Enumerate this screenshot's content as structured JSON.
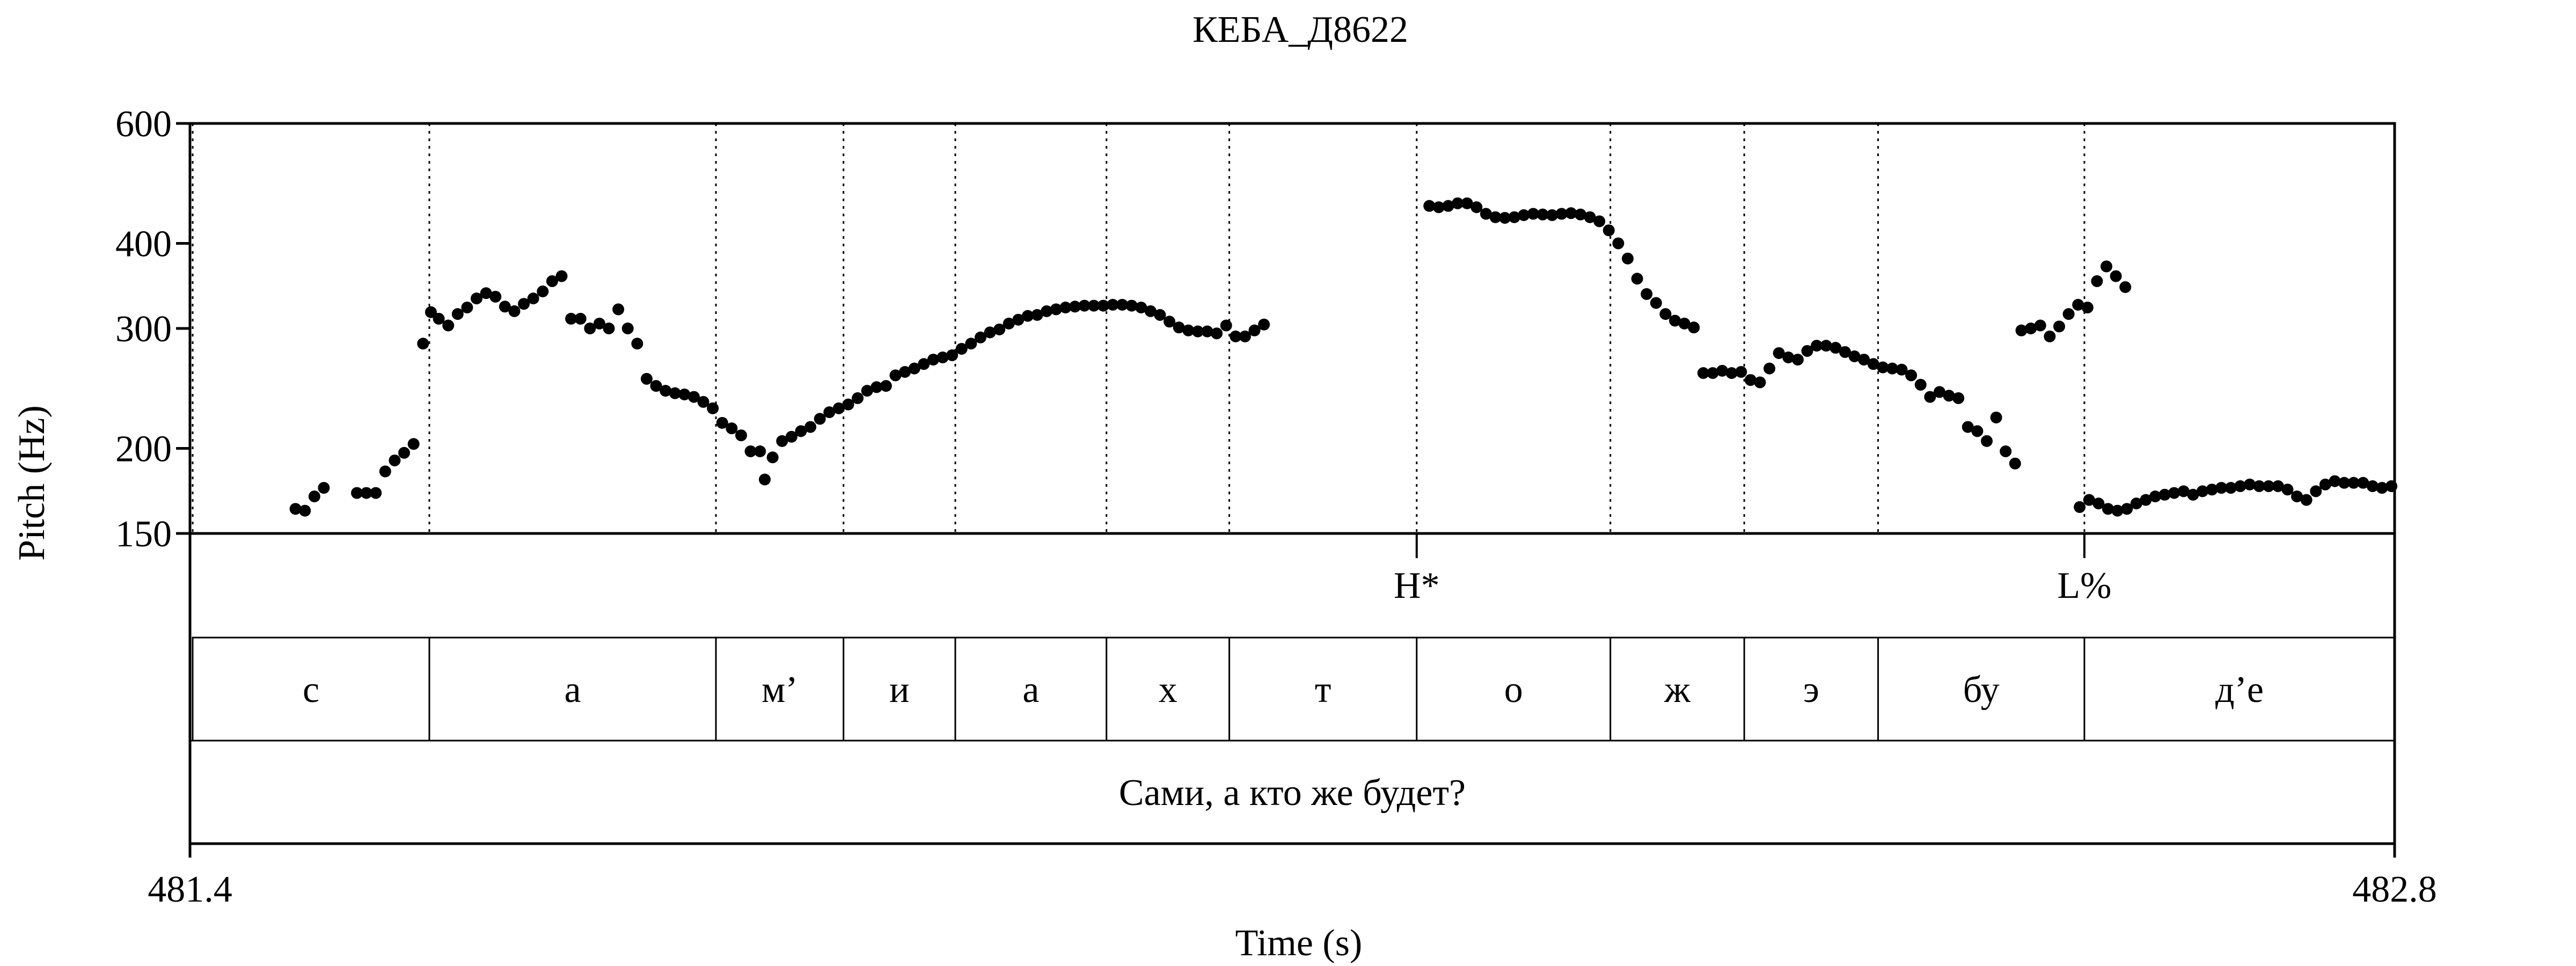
{
  "chart_data": {
    "type": "scatter",
    "title": "КЕБА_Д8622",
    "xlabel": "Time (s)",
    "ylabel": "Pitch (Hz)",
    "xlim": [
      481.4,
      482.8
    ],
    "ylim": [
      150,
      600
    ],
    "y_scale": "log",
    "x_ticks": [
      "481.4",
      "482.8"
    ],
    "y_ticks": [
      {
        "value": 150,
        "label": "150"
      },
      {
        "value": 200,
        "label": "200"
      },
      {
        "value": 300,
        "label": "300"
      },
      {
        "value": 400,
        "label": "400"
      },
      {
        "value": 600,
        "label": "600"
      }
    ],
    "grid": false,
    "segment_boundaries": [
      481.552,
      481.734,
      481.815,
      481.886,
      481.982,
      482.06,
      482.179,
      482.302,
      482.387,
      482.472,
      482.603
    ],
    "tones": [
      {
        "time": 482.179,
        "label": "H*"
      },
      {
        "time": 482.603,
        "label": "L%"
      }
    ],
    "segments": [
      {
        "start": 481.4,
        "end": 481.552,
        "label": "с"
      },
      {
        "start": 481.552,
        "end": 481.734,
        "label": "а"
      },
      {
        "start": 481.734,
        "end": 481.815,
        "label": "м’"
      },
      {
        "start": 481.815,
        "end": 481.886,
        "label": "и"
      },
      {
        "start": 481.886,
        "end": 481.982,
        "label": "а"
      },
      {
        "start": 481.982,
        "end": 482.06,
        "label": "х"
      },
      {
        "start": 482.06,
        "end": 482.179,
        "label": "т"
      },
      {
        "start": 482.179,
        "end": 482.302,
        "label": "о"
      },
      {
        "start": 482.302,
        "end": 482.387,
        "label": "ж"
      },
      {
        "start": 482.387,
        "end": 482.472,
        "label": "э"
      },
      {
        "start": 482.472,
        "end": 482.603,
        "label": "бу"
      },
      {
        "start": 482.603,
        "end": 482.8,
        "label": "д’е"
      }
    ],
    "sentence": "Сами, а кто же будет?",
    "pitch_track": [
      [
        [
          481.467,
          163
        ],
        [
          481.473,
          162
        ],
        [
          481.479,
          170
        ],
        [
          481.485,
          175
        ],
        [
          481.506,
          172
        ],
        [
          481.512,
          172
        ],
        [
          481.518,
          172
        ],
        [
          481.524,
          185
        ],
        [
          481.53,
          192
        ],
        [
          481.536,
          197
        ],
        [
          481.542,
          203
        ],
        [
          481.548,
          285
        ],
        [
          481.553,
          317
        ],
        [
          481.558,
          310
        ],
        [
          481.564,
          303
        ],
        [
          481.57,
          315
        ],
        [
          481.576,
          322
        ],
        [
          481.582,
          332
        ],
        [
          481.588,
          338
        ],
        [
          481.594,
          334
        ],
        [
          481.6,
          323
        ],
        [
          481.606,
          318
        ],
        [
          481.612,
          326
        ],
        [
          481.618,
          332
        ],
        [
          481.624,
          340
        ],
        [
          481.63,
          352
        ],
        [
          481.636,
          358
        ],
        [
          481.642,
          310
        ],
        [
          481.648,
          310
        ],
        [
          481.654,
          300
        ],
        [
          481.66,
          305
        ],
        [
          481.666,
          300
        ],
        [
          481.672,
          320
        ],
        [
          481.678,
          300
        ],
        [
          481.684,
          285
        ],
        [
          481.69,
          253
        ],
        [
          481.696,
          247
        ],
        [
          481.702,
          243
        ],
        [
          481.708,
          241
        ],
        [
          481.714,
          240
        ],
        [
          481.72,
          238
        ],
        [
          481.726,
          234
        ],
        [
          481.732,
          229
        ],
        [
          481.738,
          218
        ],
        [
          481.744,
          214
        ],
        [
          481.75,
          209
        ],
        [
          481.756,
          198
        ],
        [
          481.762,
          198
        ],
        [
          481.765,
          180
        ],
        [
          481.77,
          194
        ],
        [
          481.776,
          205
        ],
        [
          481.782,
          208
        ],
        [
          481.788,
          212
        ],
        [
          481.794,
          215
        ],
        [
          481.8,
          221
        ],
        [
          481.806,
          226
        ],
        [
          481.812,
          229
        ],
        [
          481.818,
          232
        ],
        [
          481.824,
          237
        ],
        [
          481.83,
          243
        ],
        [
          481.836,
          246
        ],
        [
          481.842,
          247
        ],
        [
          481.848,
          256
        ],
        [
          481.854,
          259
        ],
        [
          481.86,
          262
        ],
        [
          481.866,
          266
        ],
        [
          481.872,
          270
        ],
        [
          481.878,
          272
        ],
        [
          481.884,
          274
        ],
        [
          481.89,
          280
        ],
        [
          481.896,
          285
        ],
        [
          481.902,
          291
        ],
        [
          481.908,
          296
        ],
        [
          481.914,
          299
        ],
        [
          481.92,
          305
        ],
        [
          481.926,
          309
        ],
        [
          481.932,
          313
        ],
        [
          481.938,
          314
        ],
        [
          481.944,
          318
        ],
        [
          481.95,
          320
        ],
        [
          481.956,
          322
        ],
        [
          481.962,
          323
        ],
        [
          481.968,
          324
        ],
        [
          481.974,
          324
        ],
        [
          481.98,
          324
        ],
        [
          481.986,
          325
        ],
        [
          481.992,
          325
        ],
        [
          481.998,
          324
        ],
        [
          482.004,
          322
        ],
        [
          482.01,
          318
        ],
        [
          482.016,
          314
        ],
        [
          482.022,
          307
        ],
        [
          482.028,
          301
        ],
        [
          482.034,
          298
        ],
        [
          482.04,
          297
        ],
        [
          482.046,
          297
        ],
        [
          482.052,
          295
        ],
        [
          482.058,
          303
        ],
        [
          482.064,
          292
        ],
        [
          482.07,
          292
        ],
        [
          482.076,
          298
        ],
        [
          482.082,
          304
        ]
      ],
      [
        [
          482.187,
          454
        ],
        [
          482.193,
          452
        ],
        [
          482.199,
          454
        ],
        [
          482.205,
          458
        ],
        [
          482.211,
          458
        ],
        [
          482.217,
          452
        ],
        [
          482.223,
          442
        ],
        [
          482.229,
          437
        ],
        [
          482.235,
          436
        ],
        [
          482.241,
          437
        ],
        [
          482.247,
          440
        ],
        [
          482.253,
          442
        ],
        [
          482.259,
          441
        ],
        [
          482.265,
          440
        ],
        [
          482.271,
          442
        ],
        [
          482.277,
          443
        ],
        [
          482.283,
          441
        ],
        [
          482.289,
          437
        ],
        [
          482.295,
          431
        ],
        [
          482.301,
          418
        ],
        [
          482.307,
          400
        ],
        [
          482.313,
          380
        ],
        [
          482.319,
          355
        ],
        [
          482.325,
          337
        ],
        [
          482.331,
          327
        ],
        [
          482.337,
          315
        ],
        [
          482.343,
          308
        ],
        [
          482.349,
          305
        ],
        [
          482.355,
          301
        ],
        [
          482.361,
          258
        ],
        [
          482.367,
          258
        ],
        [
          482.373,
          260
        ],
        [
          482.379,
          258
        ],
        [
          482.385,
          259
        ],
        [
          482.391,
          252
        ],
        [
          482.397,
          250
        ],
        [
          482.403,
          262
        ],
        [
          482.409,
          276
        ],
        [
          482.415,
          272
        ],
        [
          482.421,
          270
        ],
        [
          482.427,
          278
        ],
        [
          482.433,
          283
        ],
        [
          482.439,
          283
        ],
        [
          482.445,
          281
        ],
        [
          482.451,
          277
        ],
        [
          482.457,
          273
        ],
        [
          482.463,
          270
        ],
        [
          482.469,
          266
        ],
        [
          482.475,
          263
        ],
        [
          482.481,
          262
        ],
        [
          482.487,
          261
        ],
        [
          482.493,
          256
        ],
        [
          482.499,
          248
        ],
        [
          482.505,
          238
        ],
        [
          482.511,
          242
        ],
        [
          482.517,
          239
        ],
        [
          482.523,
          237
        ],
        [
          482.529,
          215
        ],
        [
          482.535,
          212
        ],
        [
          482.541,
          205
        ],
        [
          482.547,
          222
        ],
        [
          482.553,
          198
        ],
        [
          482.559,
          190
        ]
      ],
      [
        [
          482.563,
          298
        ],
        [
          482.569,
          300
        ],
        [
          482.575,
          303
        ],
        [
          482.581,
          292
        ],
        [
          482.587,
          302
        ],
        [
          482.593,
          315
        ],
        [
          482.599,
          325
        ],
        [
          482.605,
          322
        ],
        [
          482.611,
          352
        ],
        [
          482.617,
          370
        ],
        [
          482.623,
          358
        ],
        [
          482.629,
          345
        ]
      ],
      [
        [
          482.6,
          164
        ],
        [
          482.606,
          168
        ],
        [
          482.612,
          166
        ],
        [
          482.618,
          163
        ],
        [
          482.624,
          162
        ],
        [
          482.63,
          163
        ],
        [
          482.636,
          166
        ],
        [
          482.642,
          168
        ],
        [
          482.648,
          170
        ],
        [
          482.654,
          171
        ],
        [
          482.66,
          172
        ],
        [
          482.666,
          173
        ],
        [
          482.672,
          171
        ],
        [
          482.678,
          173
        ],
        [
          482.684,
          174
        ],
        [
          482.69,
          175
        ],
        [
          482.696,
          175
        ],
        [
          482.702,
          176
        ],
        [
          482.708,
          177
        ],
        [
          482.714,
          176
        ],
        [
          482.72,
          176
        ],
        [
          482.726,
          176
        ],
        [
          482.732,
          174
        ],
        [
          482.738,
          170
        ],
        [
          482.744,
          168
        ],
        [
          482.75,
          173
        ],
        [
          482.756,
          177
        ],
        [
          482.762,
          179
        ],
        [
          482.768,
          178
        ],
        [
          482.774,
          178
        ],
        [
          482.78,
          178
        ],
        [
          482.786,
          176
        ],
        [
          482.792,
          175
        ],
        [
          482.798,
          176
        ]
      ]
    ]
  }
}
